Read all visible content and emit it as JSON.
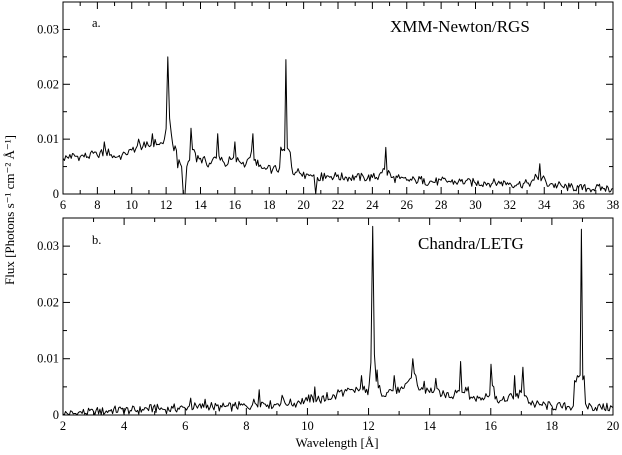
{
  "figure": {
    "ylabel": "Flux [Photons s⁻¹ cm⁻² Å⁻¹]",
    "xlabel": "Wavelength [Å]"
  },
  "chart_data": [
    {
      "type": "line",
      "panel_label": "a.",
      "instrument": "XMM-Newton/RGS",
      "xlim": [
        6,
        38
      ],
      "ylim": [
        0,
        0.035
      ],
      "xticks": [
        6,
        8,
        10,
        12,
        14,
        16,
        18,
        20,
        22,
        24,
        26,
        28,
        30,
        32,
        34,
        36,
        38
      ],
      "xtick_labels": [
        "6",
        "8",
        "10",
        "12",
        "14",
        "16",
        "18",
        "20",
        "22",
        "24",
        "26",
        "28",
        "30",
        "32",
        "34",
        "36",
        "38"
      ],
      "yticks": [
        0,
        0.01,
        0.02,
        0.03
      ],
      "ytick_labels": [
        "0",
        "0.01",
        "0.02",
        "0.03"
      ],
      "grid": false,
      "series": [
        {
          "x": [
            6.0,
            6.4,
            7.0,
            7.6,
            8.0,
            8.4,
            8.8,
            9.2,
            9.6,
            10.0,
            10.4,
            10.8,
            11.2,
            11.6,
            11.9,
            12.1,
            12.3,
            12.6,
            12.9,
            13.0,
            13.1,
            13.2,
            13.45,
            13.7,
            14.0,
            14.3,
            14.6,
            15.0,
            15.3,
            15.6,
            16.0,
            16.4,
            16.8,
            17.05,
            17.4,
            17.8,
            18.2,
            18.6,
            18.97,
            19.3,
            19.6,
            20.0,
            20.4,
            20.6,
            20.7,
            20.8,
            21.2,
            21.6,
            22.0,
            22.5,
            23.0,
            23.5,
            24.0,
            24.4,
            24.78,
            25.1,
            25.6,
            26.0,
            26.5,
            27.0,
            27.5,
            28.0,
            28.5,
            29.0,
            29.5,
            30.0,
            30.5,
            31.0,
            31.5,
            32.0,
            32.5,
            33.0,
            33.4,
            33.74,
            34.1,
            34.5,
            35.0,
            35.5,
            36.0,
            36.5,
            37.0,
            37.5,
            38.0
          ],
          "y": [
            0.0065,
            0.0072,
            0.0068,
            0.0075,
            0.007,
            0.0095,
            0.0072,
            0.0068,
            0.0075,
            0.008,
            0.01,
            0.0085,
            0.011,
            0.009,
            0.01,
            0.025,
            0.011,
            0.008,
            0.005,
            0.0,
            0.0,
            0.005,
            0.012,
            0.0075,
            0.0065,
            0.006,
            0.0055,
            0.011,
            0.006,
            0.0055,
            0.0095,
            0.0055,
            0.0065,
            0.011,
            0.005,
            0.0045,
            0.0045,
            0.0048,
            0.0245,
            0.005,
            0.004,
            0.004,
            0.0035,
            0.0035,
            0.0,
            0.003,
            0.0038,
            0.0032,
            0.0035,
            0.003,
            0.0032,
            0.003,
            0.003,
            0.0035,
            0.0085,
            0.003,
            0.0028,
            0.0025,
            0.0025,
            0.0028,
            0.0022,
            0.0025,
            0.0023,
            0.0022,
            0.0025,
            0.002,
            0.0022,
            0.002,
            0.0022,
            0.002,
            0.0018,
            0.002,
            0.0025,
            0.0055,
            0.0022,
            0.0018,
            0.0015,
            0.0012,
            0.0012,
            0.001,
            0.0012,
            0.001,
            0.001
          ]
        }
      ]
    },
    {
      "type": "line",
      "panel_label": "b.",
      "instrument": "Chandra/LETG",
      "xlim": [
        2,
        20
      ],
      "ylim": [
        0,
        0.035
      ],
      "xticks": [
        2,
        4,
        6,
        8,
        10,
        12,
        14,
        16,
        18,
        20
      ],
      "xtick_labels": [
        "2",
        "4",
        "6",
        "8",
        "10",
        "12",
        "14",
        "16",
        "18",
        "20"
      ],
      "yticks": [
        0,
        0.01,
        0.02,
        0.03
      ],
      "ytick_labels": [
        "0",
        "0.01",
        "0.02",
        "0.03"
      ],
      "grid": false,
      "series": [
        {
          "x": [
            2.0,
            2.5,
            3.0,
            3.5,
            3.95,
            4.2,
            4.6,
            5.0,
            5.3,
            5.6,
            6.0,
            6.18,
            6.4,
            6.65,
            6.9,
            7.2,
            7.6,
            8.0,
            8.2,
            8.42,
            8.7,
            9.0,
            9.17,
            9.4,
            9.7,
            10.0,
            10.24,
            10.4,
            10.64,
            10.8,
            11.0,
            11.2,
            11.4,
            11.55,
            11.77,
            11.9,
            12.02,
            12.134,
            12.25,
            12.28,
            12.4,
            12.6,
            12.84,
            13.0,
            13.2,
            13.3,
            13.447,
            13.55,
            13.7,
            13.82,
            14.0,
            14.2,
            14.4,
            14.6,
            14.8,
            15.014,
            15.1,
            15.26,
            15.4,
            15.6,
            15.8,
            16.006,
            16.1,
            16.3,
            16.5,
            16.78,
            16.9,
            17.05,
            17.2,
            17.4,
            17.6,
            17.8,
            18.0,
            18.3,
            18.5,
            18.7,
            18.967,
            19.1,
            19.3,
            19.6,
            20.0
          ],
          "y": [
            0.0002,
            0.0004,
            0.0006,
            0.0008,
            0.0012,
            0.0008,
            0.001,
            0.0018,
            0.001,
            0.0012,
            0.0012,
            0.003,
            0.0012,
            0.0028,
            0.0014,
            0.0014,
            0.0016,
            0.0016,
            0.0018,
            0.0045,
            0.0018,
            0.002,
            0.0035,
            0.002,
            0.0025,
            0.0025,
            0.005,
            0.0025,
            0.004,
            0.003,
            0.0045,
            0.004,
            0.0045,
            0.004,
            0.007,
            0.004,
            0.0055,
            0.0335,
            0.006,
            0.008,
            0.004,
            0.004,
            0.007,
            0.004,
            0.0055,
            0.006,
            0.01,
            0.007,
            0.0045,
            0.006,
            0.004,
            0.0065,
            0.0035,
            0.004,
            0.0035,
            0.0095,
            0.004,
            0.005,
            0.003,
            0.003,
            0.003,
            0.009,
            0.005,
            0.0025,
            0.0025,
            0.007,
            0.003,
            0.0085,
            0.003,
            0.002,
            0.0018,
            0.0018,
            0.0016,
            0.0015,
            0.0015,
            0.0016,
            0.033,
            0.002,
            0.0015,
            0.0014,
            0.0013
          ]
        }
      ]
    }
  ]
}
